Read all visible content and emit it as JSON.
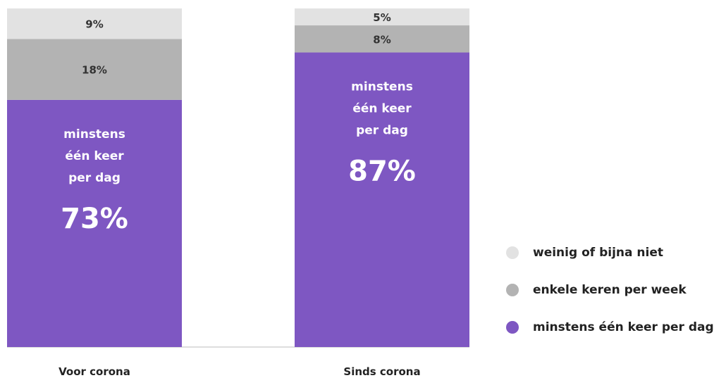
{
  "chart_data": {
    "type": "bar",
    "stacked": true,
    "normalized": true,
    "categories": [
      "Voor corona",
      "Sinds corona"
    ],
    "series": [
      {
        "name": "minstens één keer per dag",
        "values": [
          73,
          87
        ],
        "color": "#7e57c2",
        "inner_label_lines": [
          "minstens",
          "één keer",
          "per dag"
        ]
      },
      {
        "name": "enkele keren per week",
        "values": [
          18,
          8
        ],
        "color": "#b3b3b3"
      },
      {
        "name": "weinig of bijna niet",
        "values": [
          9,
          5
        ],
        "color": "#e2e2e2"
      }
    ],
    "value_labels": [
      [
        "73%",
        "18%",
        "9%"
      ],
      [
        "87%",
        "8%",
        "5%"
      ]
    ],
    "ylim": [
      0,
      100
    ],
    "grid": false,
    "legend_position": "bottom-right"
  }
}
